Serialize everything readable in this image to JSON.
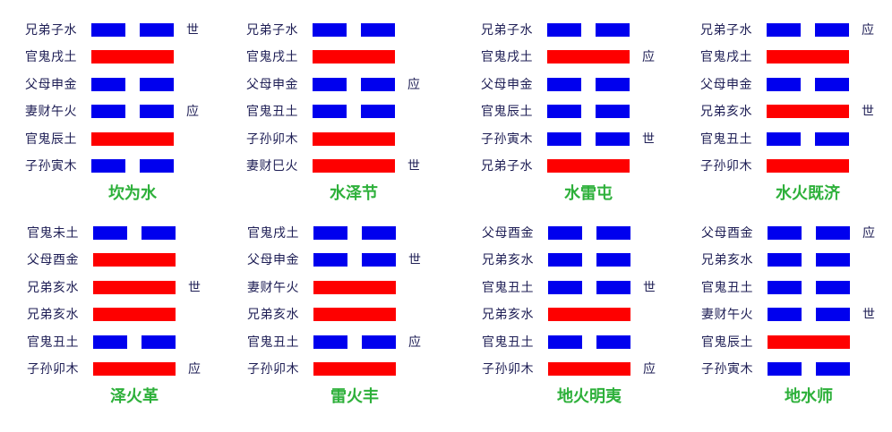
{
  "colors": {
    "yang": "#fe0000",
    "yin": "#0000ee",
    "title": "#2db03a",
    "text": "#1e1e55"
  },
  "hexagrams": [
    {
      "name": "坎为水",
      "lines": [
        {
          "label": "兄弟子水",
          "type": "yin",
          "marker": "世"
        },
        {
          "label": "官鬼戌土",
          "type": "yang",
          "marker": ""
        },
        {
          "label": "父母申金",
          "type": "yin",
          "marker": ""
        },
        {
          "label": "妻财午火",
          "type": "yin",
          "marker": "应"
        },
        {
          "label": "官鬼辰土",
          "type": "yang",
          "marker": ""
        },
        {
          "label": "子孙寅木",
          "type": "yin",
          "marker": ""
        }
      ]
    },
    {
      "name": "水泽节",
      "lines": [
        {
          "label": "兄弟子水",
          "type": "yin",
          "marker": ""
        },
        {
          "label": "官鬼戌土",
          "type": "yang",
          "marker": ""
        },
        {
          "label": "父母申金",
          "type": "yin",
          "marker": "应"
        },
        {
          "label": "官鬼丑土",
          "type": "yin",
          "marker": ""
        },
        {
          "label": "子孙卯木",
          "type": "yang",
          "marker": ""
        },
        {
          "label": "妻财巳火",
          "type": "yang",
          "marker": "世"
        }
      ]
    },
    {
      "name": "水雷屯",
      "lines": [
        {
          "label": "兄弟子水",
          "type": "yin",
          "marker": ""
        },
        {
          "label": "官鬼戌土",
          "type": "yang",
          "marker": "应"
        },
        {
          "label": "父母申金",
          "type": "yin",
          "marker": ""
        },
        {
          "label": "官鬼辰土",
          "type": "yin",
          "marker": ""
        },
        {
          "label": "子孙寅木",
          "type": "yin",
          "marker": "世"
        },
        {
          "label": "兄弟子水",
          "type": "yang",
          "marker": ""
        }
      ]
    },
    {
      "name": "水火既济",
      "lines": [
        {
          "label": "兄弟子水",
          "type": "yin",
          "marker": "应"
        },
        {
          "label": "官鬼戌土",
          "type": "yang",
          "marker": ""
        },
        {
          "label": "父母申金",
          "type": "yin",
          "marker": ""
        },
        {
          "label": "兄弟亥水",
          "type": "yang",
          "marker": "世"
        },
        {
          "label": "官鬼丑土",
          "type": "yin",
          "marker": ""
        },
        {
          "label": "子孙卯木",
          "type": "yang",
          "marker": ""
        }
      ]
    },
    {
      "name": "泽火革",
      "lines": [
        {
          "label": "官鬼未土",
          "type": "yin",
          "marker": ""
        },
        {
          "label": "父母酉金",
          "type": "yang",
          "marker": ""
        },
        {
          "label": "兄弟亥水",
          "type": "yang",
          "marker": "世"
        },
        {
          "label": "兄弟亥水",
          "type": "yang",
          "marker": ""
        },
        {
          "label": "官鬼丑土",
          "type": "yin",
          "marker": ""
        },
        {
          "label": "子孙卯木",
          "type": "yang",
          "marker": "应"
        }
      ]
    },
    {
      "name": "雷火丰",
      "lines": [
        {
          "label": "官鬼戌土",
          "type": "yin",
          "marker": ""
        },
        {
          "label": "父母申金",
          "type": "yin",
          "marker": "世"
        },
        {
          "label": "妻财午火",
          "type": "yang",
          "marker": ""
        },
        {
          "label": "兄弟亥水",
          "type": "yang",
          "marker": ""
        },
        {
          "label": "官鬼丑土",
          "type": "yin",
          "marker": "应"
        },
        {
          "label": "子孙卯木",
          "type": "yang",
          "marker": ""
        }
      ]
    },
    {
      "name": "地火明夷",
      "lines": [
        {
          "label": "父母酉金",
          "type": "yin",
          "marker": ""
        },
        {
          "label": "兄弟亥水",
          "type": "yin",
          "marker": ""
        },
        {
          "label": "官鬼丑土",
          "type": "yin",
          "marker": "世"
        },
        {
          "label": "兄弟亥水",
          "type": "yang",
          "marker": ""
        },
        {
          "label": "官鬼丑土",
          "type": "yin",
          "marker": ""
        },
        {
          "label": "子孙卯木",
          "type": "yang",
          "marker": "应"
        }
      ]
    },
    {
      "name": "地水师",
      "lines": [
        {
          "label": "父母酉金",
          "type": "yin",
          "marker": "应"
        },
        {
          "label": "兄弟亥水",
          "type": "yin",
          "marker": ""
        },
        {
          "label": "官鬼丑土",
          "type": "yin",
          "marker": ""
        },
        {
          "label": "妻财午火",
          "type": "yin",
          "marker": "世"
        },
        {
          "label": "官鬼辰土",
          "type": "yang",
          "marker": ""
        },
        {
          "label": "子孙寅木",
          "type": "yin",
          "marker": ""
        }
      ]
    }
  ]
}
